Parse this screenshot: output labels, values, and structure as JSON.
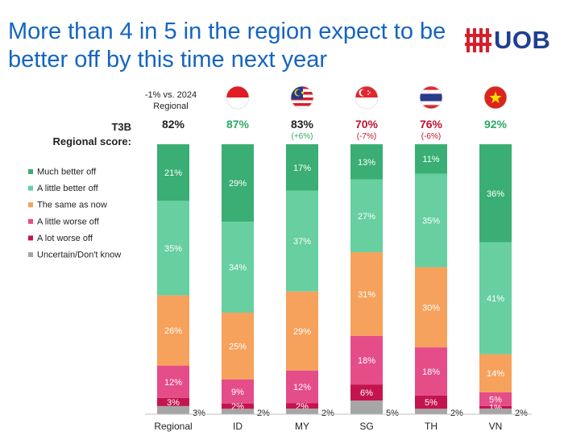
{
  "title": "More than 4 in 5 in the region expect to be better off by this time next year",
  "brand": {
    "name": "UOB",
    "logo_color": "#d81e2a",
    "text_color": "#1f3f8f"
  },
  "header": {
    "comparison_note_line1": "-1% vs. 2024",
    "comparison_note_line2": "Regional",
    "score_label_line1": "T3B",
    "score_label_line2": "Regional score:"
  },
  "chart_data": {
    "type": "bar",
    "stacked": true,
    "percent_stacked": true,
    "categories": [
      "Regional",
      "ID",
      "MY",
      "SG",
      "TH",
      "VN"
    ],
    "series": [
      {
        "name": "Much better off",
        "color": "#3aae74",
        "values": [
          21,
          29,
          17,
          13,
          11,
          36
        ]
      },
      {
        "name": "A little better off",
        "color": "#67cfa0",
        "values": [
          35,
          34,
          37,
          27,
          35,
          41
        ]
      },
      {
        "name": "The same as now",
        "color": "#f6a25c",
        "values": [
          26,
          25,
          29,
          31,
          30,
          14
        ]
      },
      {
        "name": "A little worse off",
        "color": "#e54d88",
        "values": [
          12,
          9,
          12,
          18,
          18,
          5
        ]
      },
      {
        "name": "A lot worse off",
        "color": "#c4144f",
        "values": [
          3,
          2,
          2,
          6,
          5,
          1
        ]
      },
      {
        "name": "Uncertain/Don't know",
        "color": "#a6a6a6",
        "values": [
          3,
          2,
          2,
          5,
          2,
          2
        ]
      }
    ],
    "t3b_scores": [
      "82%",
      "87%",
      "83%",
      "70%",
      "76%",
      "92%"
    ],
    "t3b_colors": [
      "#222222",
      "#2eaa60",
      "#222222",
      "#c0112d",
      "#c0112d",
      "#2eaa60"
    ],
    "changes_vs_2024": [
      "",
      "",
      "(+6%)",
      "(-7%)",
      "(-6%)",
      ""
    ],
    "change_colors": [
      "#222222",
      "#222222",
      "#2eaa60",
      "#c0112d",
      "#c0112d",
      "#222222"
    ],
    "flags": [
      "",
      "indonesia-flag",
      "malaysia-flag",
      "singapore-flag",
      "thailand-flag",
      "vietnam-flag"
    ],
    "legend_position": "left",
    "ylim": [
      0,
      100
    ]
  }
}
